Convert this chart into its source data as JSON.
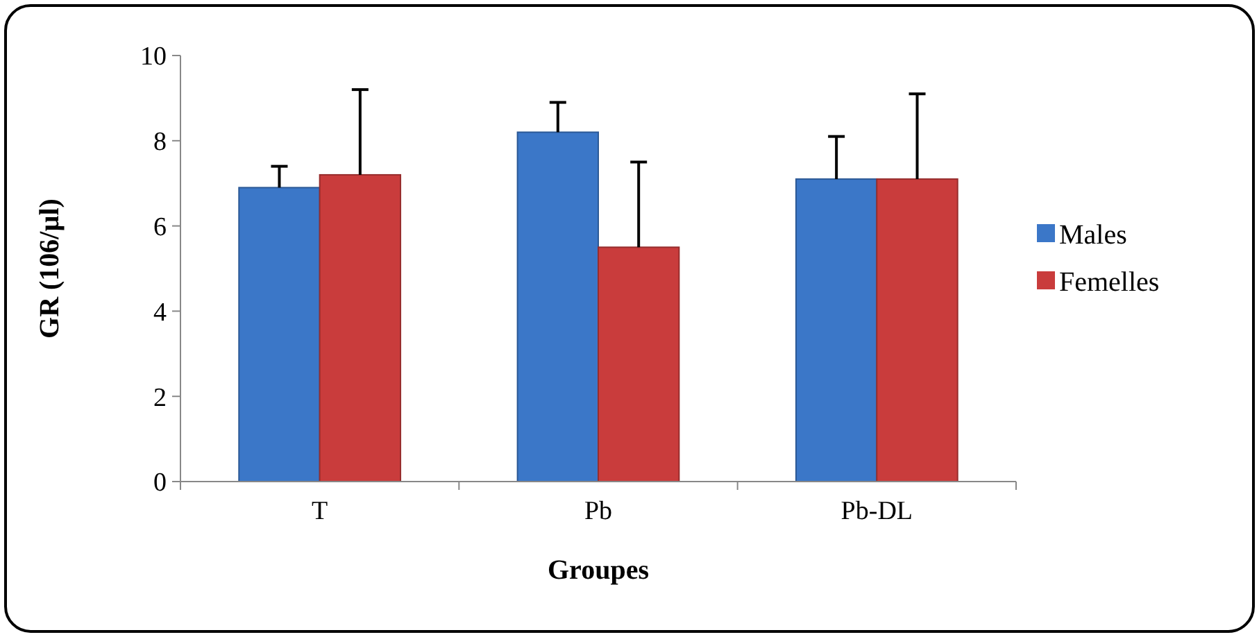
{
  "chart_data": {
    "type": "bar",
    "xlabel": "Groupes",
    "ylabel": "GR (106/µl)",
    "categories": [
      "T",
      "Pb",
      "Pb-DL"
    ],
    "series": [
      {
        "name": "Males",
        "color": "#3b77c8",
        "values": [
          6.9,
          8.2,
          7.1
        ],
        "errors": [
          0.5,
          0.7,
          1.0
        ]
      },
      {
        "name": "Femelles",
        "color": "#c93c3c",
        "values": [
          7.2,
          5.5,
          7.1
        ],
        "errors": [
          2.0,
          2.0,
          2.0
        ]
      }
    ],
    "ylim": [
      0,
      10
    ],
    "yticks": [
      0,
      2,
      4,
      6,
      8,
      10
    ],
    "grid": false,
    "legend": "right"
  }
}
